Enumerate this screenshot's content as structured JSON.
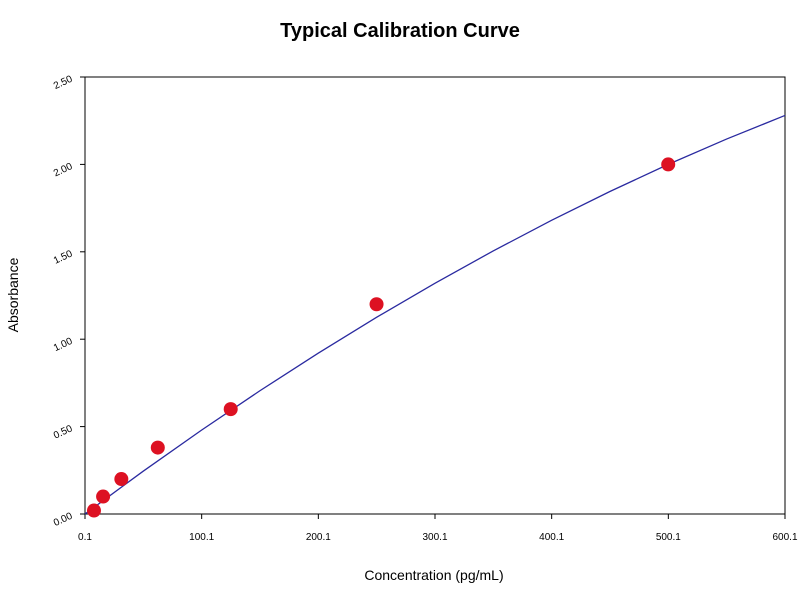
{
  "chart_data": {
    "type": "scatter",
    "title": "Typical Calibration Curve",
    "x_label": "Concentration (pg/mL)",
    "y_label": "Absorbance",
    "series": [
      {
        "x": [
          7.8,
          15.6,
          31.25,
          62.5,
          125,
          250,
          500
        ],
        "values": [
          0.02,
          0.1,
          0.2,
          0.38,
          0.6,
          1.2,
          2.0
        ],
        "color": "#dd1122",
        "mode": "markers"
      },
      {
        "x": [
          0.1,
          50,
          100,
          150,
          200,
          250,
          300,
          350,
          400,
          450,
          500,
          550,
          600.1
        ],
        "values": [
          0.0,
          0.245,
          0.48,
          0.705,
          0.92,
          1.125,
          1.32,
          1.505,
          1.68,
          1.845,
          2.0,
          2.145,
          2.28
        ],
        "color": "#2a2aa0",
        "mode": "line"
      }
    ],
    "xlim": [
      0.1,
      600.1
    ],
    "xticks": [
      0.1,
      100.1,
      200.1,
      300.1,
      400.1,
      500.1,
      600.1
    ],
    "ylim": [
      0,
      2.5
    ],
    "yticks": [
      {
        "value": 0,
        "label": "0.00"
      },
      {
        "value": 0.5,
        "label": "0.50"
      },
      {
        "value": 1.0,
        "label": "1.00"
      },
      {
        "value": 1.5,
        "label": "1.50"
      },
      {
        "value": 2.0,
        "label": "2.00"
      },
      {
        "value": 2.5,
        "label": "2.50"
      }
    ]
  }
}
